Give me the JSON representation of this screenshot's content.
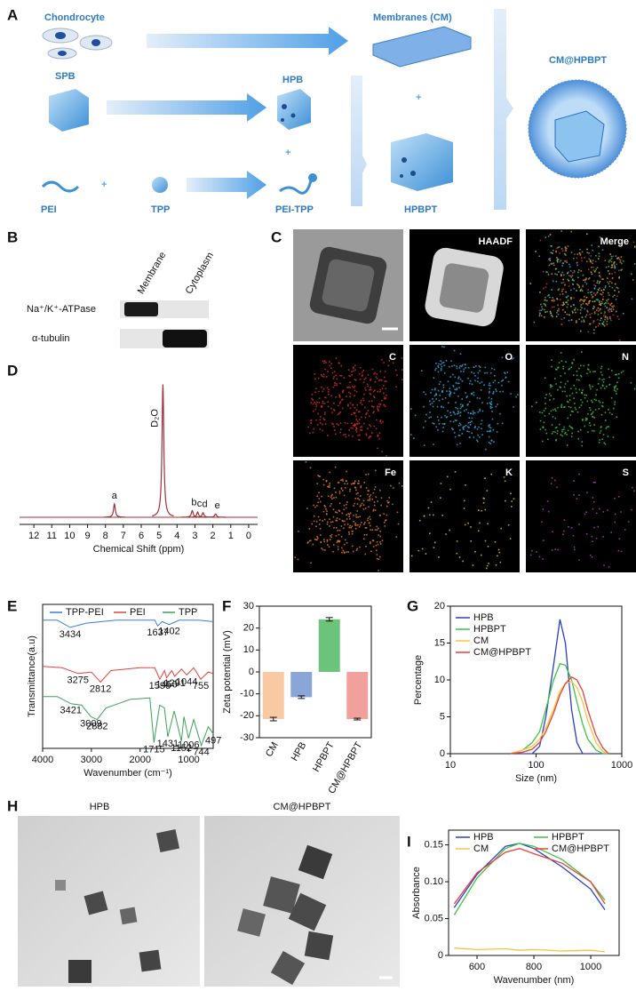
{
  "panel_letters": [
    "A",
    "B",
    "C",
    "D",
    "E",
    "F",
    "G",
    "H",
    "I"
  ],
  "schematic": {
    "chondrocyte": "Chondrocyte",
    "membranes": "Membranes (CM)",
    "spb": "SPB",
    "hpb": "HPB",
    "product": "CM@HPBPT",
    "pei": "PEI",
    "tpp": "TPP",
    "pei_tpp": "PEI-TPP",
    "hpbpt": "HPBPT"
  },
  "western_blot": {
    "lanes": [
      "Membrane",
      "Cytoplasm"
    ],
    "rows": [
      "Na⁺/K⁺-ATPase",
      "α-tubulin"
    ]
  },
  "eds_mapping": {
    "labels": [
      "HAADF",
      "Merge",
      "C",
      "O",
      "N",
      "Fe",
      "K",
      "S"
    ]
  },
  "tem": {
    "labels": [
      "HPB",
      "CM@HPBPT"
    ]
  },
  "chart_data": [
    {
      "type": "nmr",
      "xlabel": "Chemical Shift (ppm)",
      "xlim": [
        12.8,
        -0.5
      ],
      "xticks": [
        12,
        11,
        10,
        9,
        8,
        7,
        6,
        5,
        4,
        3,
        2,
        1,
        0
      ],
      "ylim": [
        0,
        105
      ],
      "color": "#a0303a",
      "peaks": {
        "labels": [
          "a",
          "D₂O",
          "b",
          "c",
          "d",
          "e"
        ],
        "x": [
          7.5,
          4.79,
          3.15,
          2.85,
          2.55,
          1.85
        ],
        "values": [
          10,
          100,
          5,
          4,
          3.5,
          2.5
        ]
      }
    },
    {
      "type": "ftir",
      "xlabel": "Wavenumber (cm⁻¹)",
      "ylabel": "Transmittance(a.u)",
      "xlim": [
        4000,
        500
      ],
      "xticks": [
        4000,
        3000,
        2000,
        1000
      ],
      "ylim": [
        0,
        100
      ],
      "legend": "top",
      "series": [
        {
          "name": "TPP-PEI",
          "color": "#3b7ddd",
          "x": [
            4000,
            3700,
            3434,
            3100,
            2500,
            2000,
            1700,
            1637,
            1550,
            1402,
            1200,
            800,
            500
          ],
          "values": [
            89,
            89,
            84,
            87,
            89,
            89,
            89,
            85,
            88,
            86,
            89,
            89,
            88
          ],
          "annotations": [
            "3434",
            "1637",
            "1402"
          ]
        },
        {
          "name": "PEI",
          "color": "#e8403a",
          "x": [
            4000,
            3600,
            3275,
            3000,
            2812,
            2600,
            2000,
            1700,
            1596,
            1500,
            1456,
            1350,
            1291,
            1150,
            1044,
            900,
            755,
            600,
            500
          ],
          "values": [
            57,
            56,
            52,
            53,
            46,
            54,
            56,
            56,
            48,
            54,
            49,
            54,
            50,
            55,
            51,
            56,
            48,
            53,
            52
          ],
          "annotations": [
            "3275",
            "2812",
            "1596",
            "1456",
            "1291",
            "1044",
            "755"
          ]
        },
        {
          "name": "TPP",
          "color": "#3aa357",
          "x": [
            4000,
            3700,
            3421,
            3200,
            3009,
            2882,
            2700,
            2200,
            1800,
            1715,
            1600,
            1500,
            1431,
            1300,
            1152,
            1100,
            1006,
            900,
            744,
            600,
            497
          ],
          "values": [
            36,
            36,
            31,
            30,
            22,
            20,
            28,
            34,
            35,
            4,
            30,
            28,
            8,
            26,
            5,
            22,
            7,
            20,
            2,
            15,
            10
          ],
          "annotations": [
            "3421",
            "3009",
            "2882",
            "1715",
            "1431",
            "1152",
            "1006",
            "744",
            "497"
          ]
        }
      ]
    },
    {
      "type": "bar",
      "ylabel": "Zeta potential (mV)",
      "categories": [
        "CM",
        "HPB",
        "HPBPT",
        "CM@HPBPT"
      ],
      "values": [
        -21.5,
        -11.5,
        24,
        -21.5
      ],
      "errors": [
        0.8,
        0.6,
        0.8,
        0.4
      ],
      "colors": [
        "#f9c9a4",
        "#8aa6d6",
        "#6cc47a",
        "#f2a09c"
      ],
      "ylim": [
        -30,
        30
      ],
      "yticks": [
        -30,
        -20,
        -10,
        0,
        10,
        20,
        30
      ]
    },
    {
      "type": "line",
      "log_x": true,
      "xlabel": "Size (nm)",
      "ylabel": "Percentage",
      "xlim": [
        10,
        1000
      ],
      "xticks": [
        10,
        100,
        1000
      ],
      "ylim": [
        0,
        20
      ],
      "yticks": [
        0,
        5,
        10,
        15,
        20
      ],
      "legend": "upper left",
      "x": [
        50,
        70,
        90,
        110,
        130,
        160,
        190,
        220,
        260,
        300,
        350,
        400,
        500,
        600,
        700
      ],
      "series": [
        {
          "name": "HPB",
          "color": "#2a3ec8",
          "values": [
            0,
            0,
            0,
            1,
            5,
            12,
            18.2,
            15,
            6,
            1.5,
            0,
            0,
            0,
            0,
            0
          ]
        },
        {
          "name": "HPBPT",
          "color": "#3ec43e",
          "values": [
            0,
            0.5,
            1.5,
            3,
            6,
            10,
            12.2,
            12,
            10,
            7,
            4,
            2,
            0.5,
            0,
            0
          ]
        },
        {
          "name": "CM",
          "color": "#f5c542",
          "values": [
            0,
            0.5,
            1,
            2,
            3.5,
            6,
            8.5,
            9.5,
            9.8,
            9,
            7,
            4.5,
            1.5,
            0.3,
            0
          ]
        },
        {
          "name": "CM@HPBPT",
          "color": "#e8403a",
          "values": [
            0,
            0.2,
            0.6,
            1.5,
            3,
            5.5,
            8,
            9.5,
            10.4,
            10,
            8.5,
            6,
            2.5,
            0.8,
            0
          ]
        }
      ]
    },
    {
      "type": "line",
      "xlabel": "Wavenumber (nm)",
      "ylabel": "Absorbance",
      "xlim": [
        500,
        1100
      ],
      "xticks": [
        600,
        800,
        1000
      ],
      "ylim": [
        0,
        0.17
      ],
      "yticks": [
        0,
        0.05,
        {
          "value": 0.1,
          "label": "0.10"
        },
        0.15
      ],
      "legend": "top",
      "x": [
        520,
        600,
        700,
        750,
        800,
        900,
        1000,
        1050
      ],
      "series": [
        {
          "name": "HPB",
          "color": "#2a3ec8",
          "values": [
            0.065,
            0.11,
            0.148,
            0.152,
            0.145,
            0.12,
            0.09,
            0.062
          ]
        },
        {
          "name": "HPBPT",
          "color": "#3ec43e",
          "values": [
            0.055,
            0.105,
            0.145,
            0.152,
            0.148,
            0.13,
            0.1,
            0.075
          ]
        },
        {
          "name": "CM",
          "color": "#f5c542",
          "values": [
            0.01,
            0.008,
            0.009,
            0.007,
            0.008,
            0.006,
            0.007,
            0.005
          ]
        },
        {
          "name": "CM@HPBPT",
          "color": "#e8403a",
          "values": [
            0.07,
            0.112,
            0.14,
            0.145,
            0.138,
            0.125,
            0.1,
            0.07
          ]
        }
      ]
    }
  ]
}
